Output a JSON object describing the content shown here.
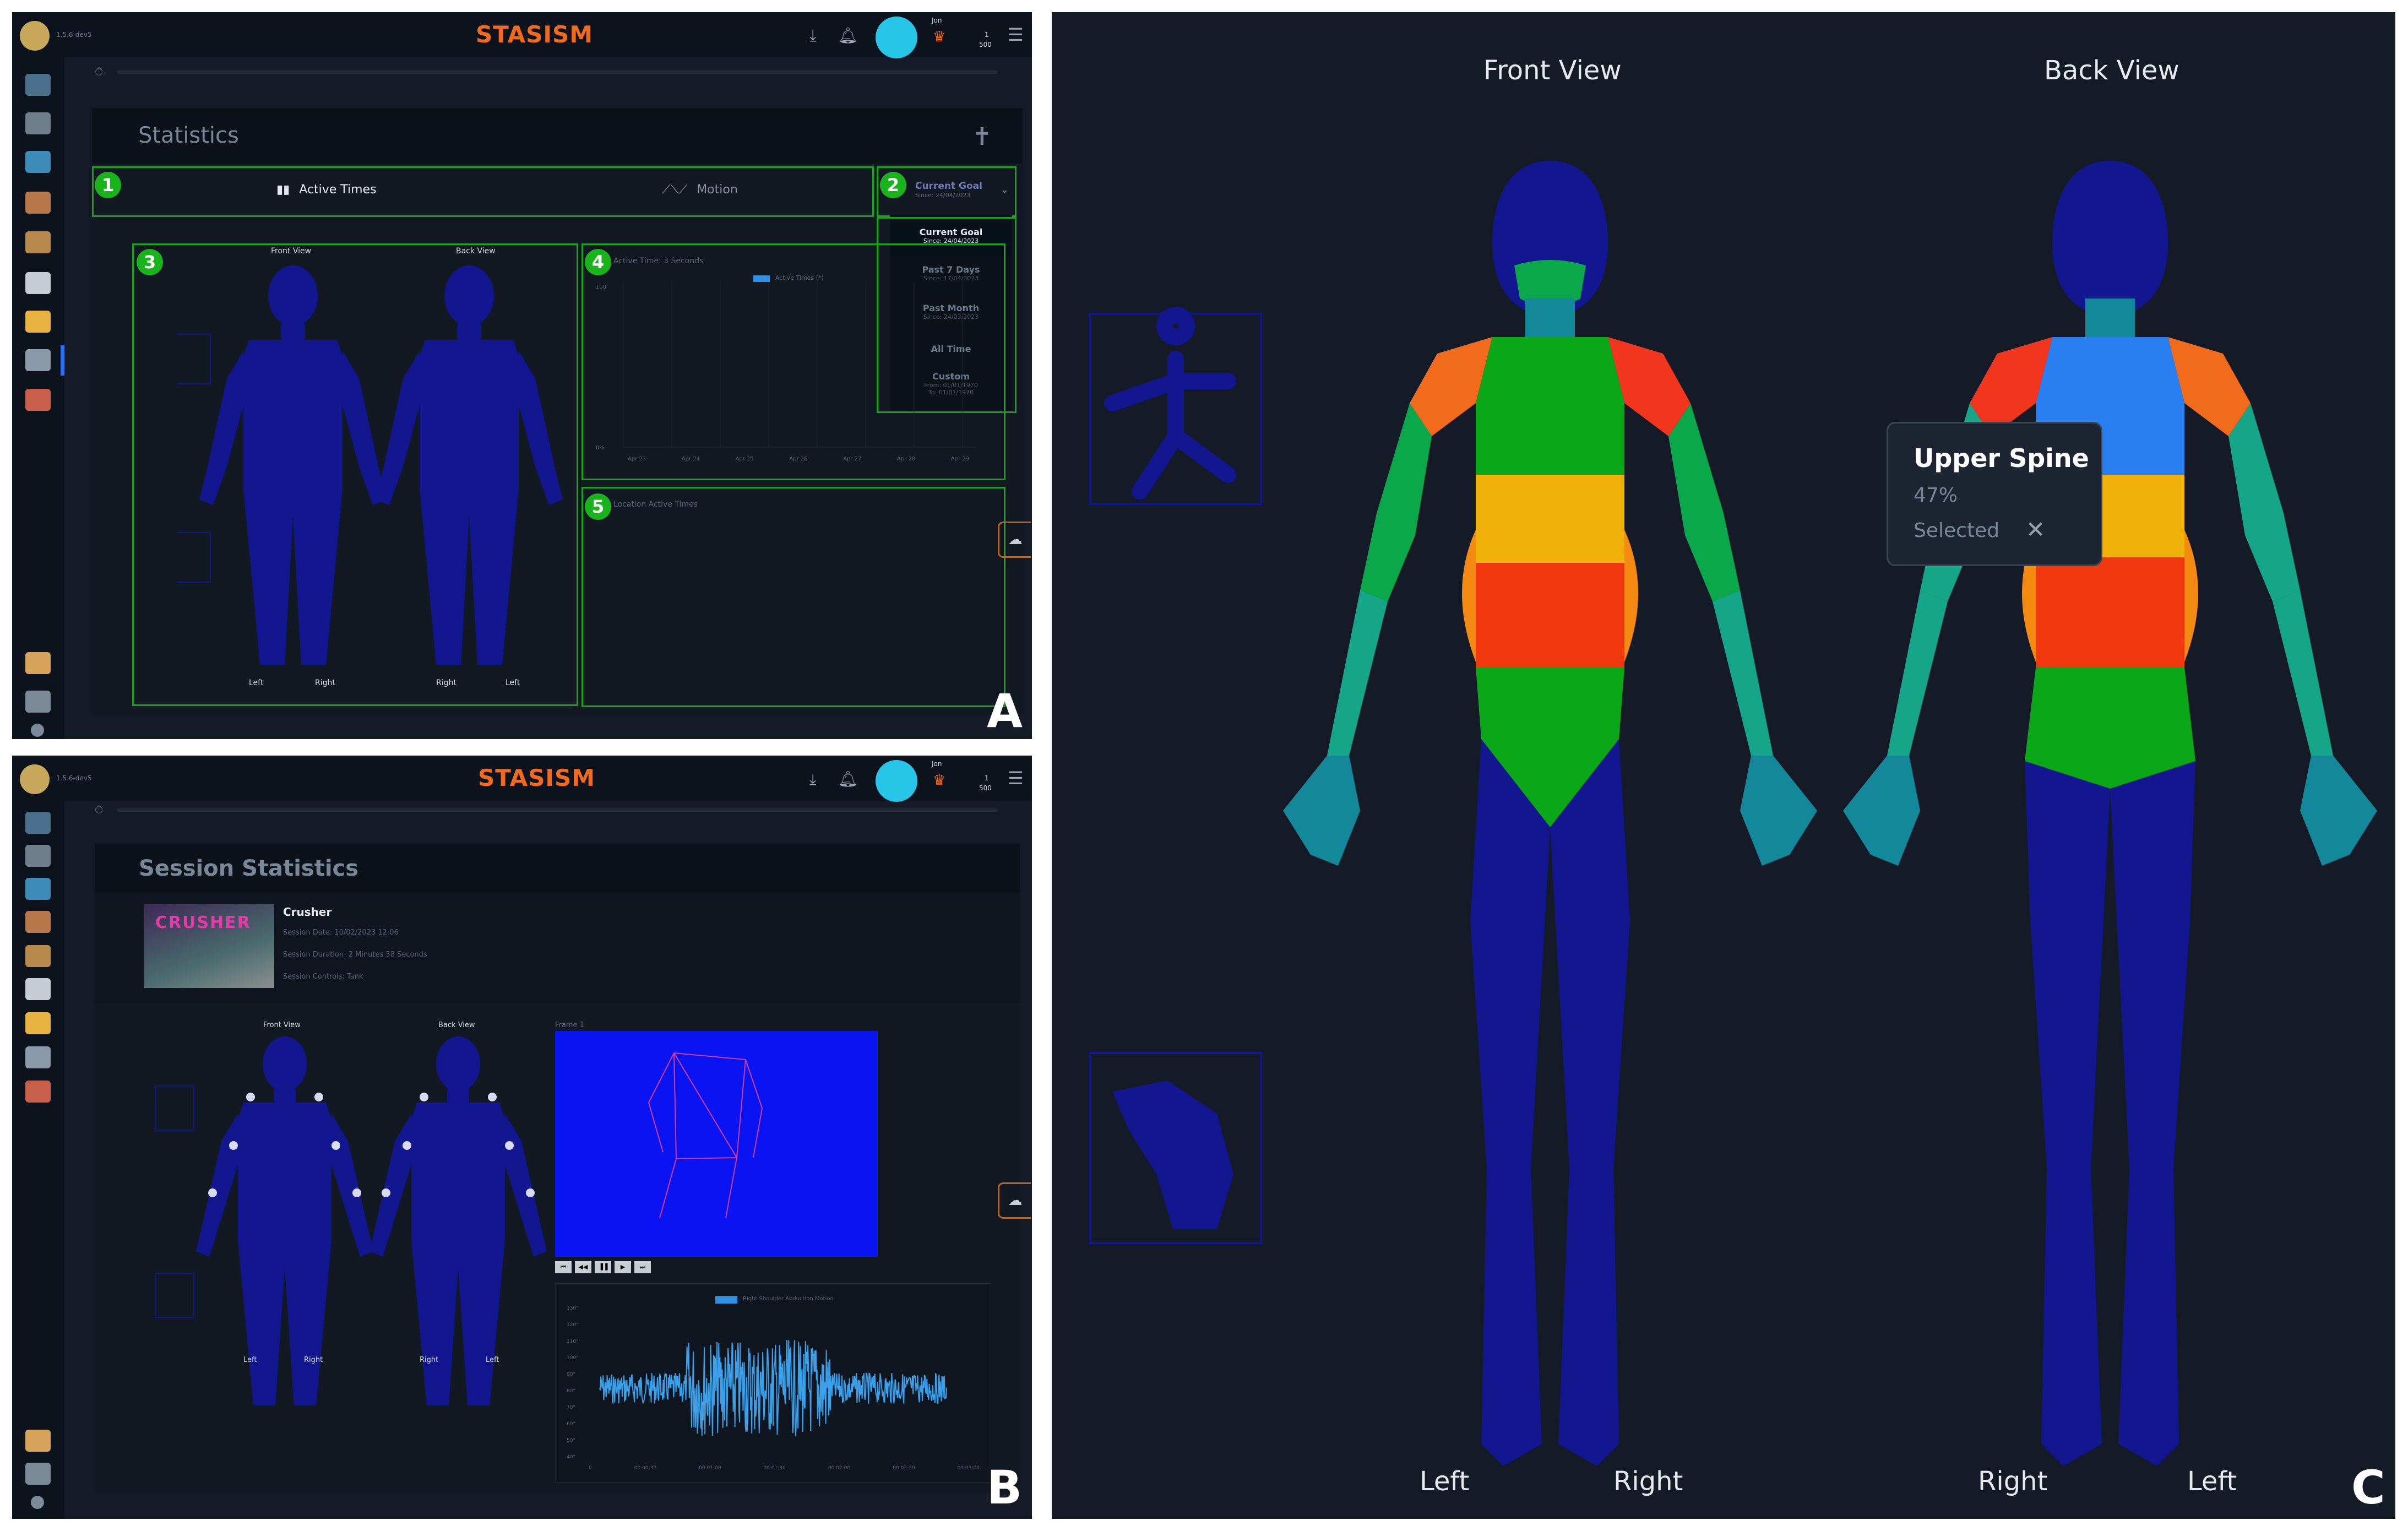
{
  "app": {
    "version": "1.5.6-dev5",
    "logo": "STASISM",
    "user": "Jon",
    "points_top": "1",
    "points_bottom": "500",
    "colors": {
      "accent": "#f26b1d",
      "bg": "#141b26",
      "body_blue": "#13178f",
      "highlight_green": "#19a31c"
    }
  },
  "panel_labels": {
    "a": "A",
    "b": "B",
    "c": "C"
  },
  "statistics": {
    "title": "Statistics",
    "tabs": [
      {
        "label": "Active Times",
        "icon": "bar-chart-icon"
      },
      {
        "label": "Motion",
        "icon": "line-chart-icon"
      }
    ],
    "badges": [
      "1",
      "2",
      "3",
      "4",
      "5"
    ],
    "goal": {
      "label": "Current Goal",
      "since": "Since: 24/04/2023"
    },
    "dropdown": [
      {
        "label": "Current Goal",
        "sub": "Since: 24/04/2023"
      },
      {
        "label": "Past 7 Days",
        "sub": "Since: 17/04/2023"
      },
      {
        "label": "Past Month",
        "sub": "Since: 24/03/2023"
      },
      {
        "label": "All Time",
        "sub": ""
      },
      {
        "label": "Custom",
        "sub": "From: 01/01/1970",
        "sub2": "To: 01/01/1970"
      }
    ],
    "body_views": {
      "front": "Front View",
      "back": "Back View"
    },
    "sides": {
      "left": "Left",
      "right": "Right"
    },
    "active_time_title": "Active Time: 3 Seconds",
    "active_legend": "Active Times (*)",
    "active_y_ticks": [
      "100",
      "0%"
    ],
    "active_x_ticks": [
      "Apr 23",
      "Apr 24",
      "Apr 25",
      "Apr 26",
      "Apr 27",
      "Apr 28",
      "Apr 29"
    ],
    "location_title": "Location Active Times"
  },
  "session": {
    "title": "Session Statistics",
    "game": "Crusher",
    "thumbnail_text": "CRUSHER",
    "date": "Session Date: 10/02/2023 12:06",
    "duration": "Session Duration: 2 Minutes 58 Seconds",
    "controls": "Session Controls: Tank",
    "frame_label": "Frame 1",
    "player_buttons": [
      "⏮",
      "◀◀",
      "▐▐",
      "▶",
      "⏭"
    ],
    "chart_legend": "Right Shoulder Abduction Motion",
    "chart_y_ticks": [
      "130°",
      "120°",
      "110°",
      "100°",
      "90°",
      "80°",
      "70°",
      "60°",
      "50°",
      "40°"
    ],
    "chart_x_ticks": [
      "0",
      "00:00:30",
      "00:01:00",
      "00:01:30",
      "00:02:00",
      "00:02:30",
      "00:03:00"
    ]
  },
  "heatmap": {
    "front": "Front View",
    "back": "Back View",
    "front_left": "Left",
    "front_right": "Right",
    "back_right": "Right",
    "back_left": "Left",
    "tooltip": {
      "title": "Upper Spine",
      "value": "47%",
      "status": "Selected"
    }
  }
}
